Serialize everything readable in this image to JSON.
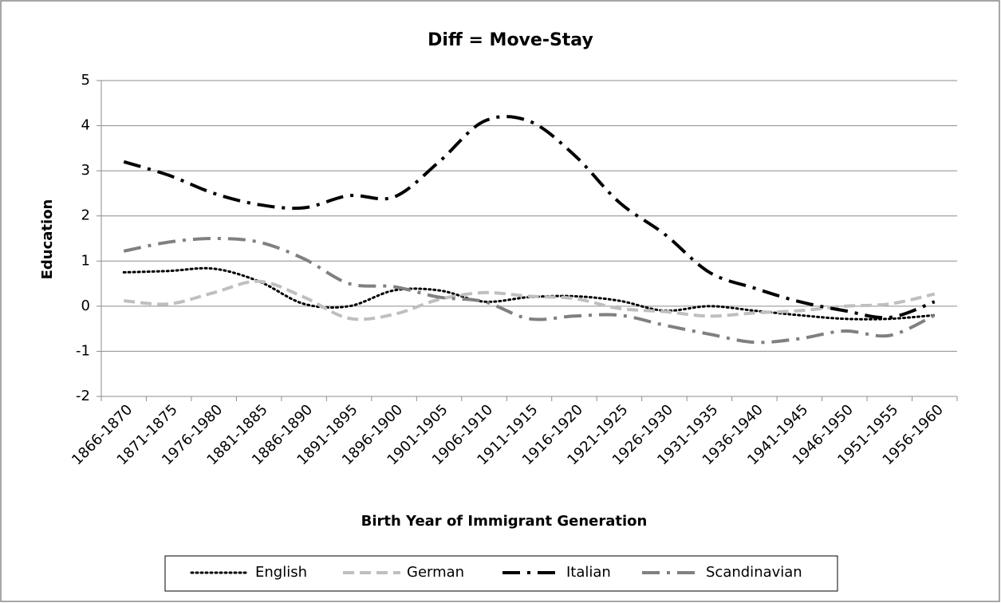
{
  "chart_data": {
    "type": "line",
    "title": "Diff = Move-Stay",
    "x_label": "Birth Year of Immigrant Generation",
    "y_label": "Education",
    "categories": [
      "1866-1870",
      "1871-1875",
      "1976-1980",
      "1881-1885",
      "1886-1890",
      "1891-1895",
      "1896-1900",
      "1901-1905",
      "1906-1910",
      "1911-1915",
      "1916-1920",
      "1921-1925",
      "1926-1930",
      "1931-1935",
      "1936-1940",
      "1941-1945",
      "1946-1950",
      "1951-1955",
      "1956-1960"
    ],
    "series": [
      {
        "name": "English",
        "color": "#000000",
        "line_style": "dotted",
        "values": [
          0.75,
          0.78,
          0.83,
          0.55,
          0.05,
          0.0,
          0.35,
          0.35,
          0.1,
          0.2,
          0.22,
          0.12,
          -0.1,
          0.0,
          -0.1,
          -0.2,
          -0.28,
          -0.28,
          -0.2
        ]
      },
      {
        "name": "German",
        "color": "#bfbfbf",
        "line_style": "dashed",
        "values": [
          0.12,
          0.05,
          0.3,
          0.55,
          0.2,
          -0.27,
          -0.18,
          0.15,
          0.3,
          0.22,
          0.17,
          -0.05,
          -0.12,
          -0.22,
          -0.15,
          -0.1,
          0.0,
          0.05,
          0.27
        ]
      },
      {
        "name": "Italian",
        "color": "#000000",
        "line_style": "long-dash-dot",
        "values": [
          3.2,
          2.9,
          2.5,
          2.25,
          2.18,
          2.45,
          2.42,
          3.2,
          4.1,
          4.1,
          3.35,
          2.3,
          1.6,
          0.75,
          0.4,
          0.1,
          -0.1,
          -0.25,
          0.1
        ]
      },
      {
        "name": "Scandinavian",
        "color": "#808080",
        "line_style": "long-dash-dot",
        "values": [
          1.22,
          1.42,
          1.5,
          1.42,
          1.05,
          0.5,
          0.43,
          0.2,
          0.1,
          -0.28,
          -0.22,
          -0.2,
          -0.42,
          -0.62,
          -0.8,
          -0.72,
          -0.55,
          -0.65,
          -0.2
        ]
      }
    ],
    "ylim": [
      -2,
      5
    ],
    "yticks": [
      -2,
      -1,
      0,
      1,
      2,
      3,
      4,
      5
    ],
    "grid": true,
    "legend": "bottom"
  }
}
